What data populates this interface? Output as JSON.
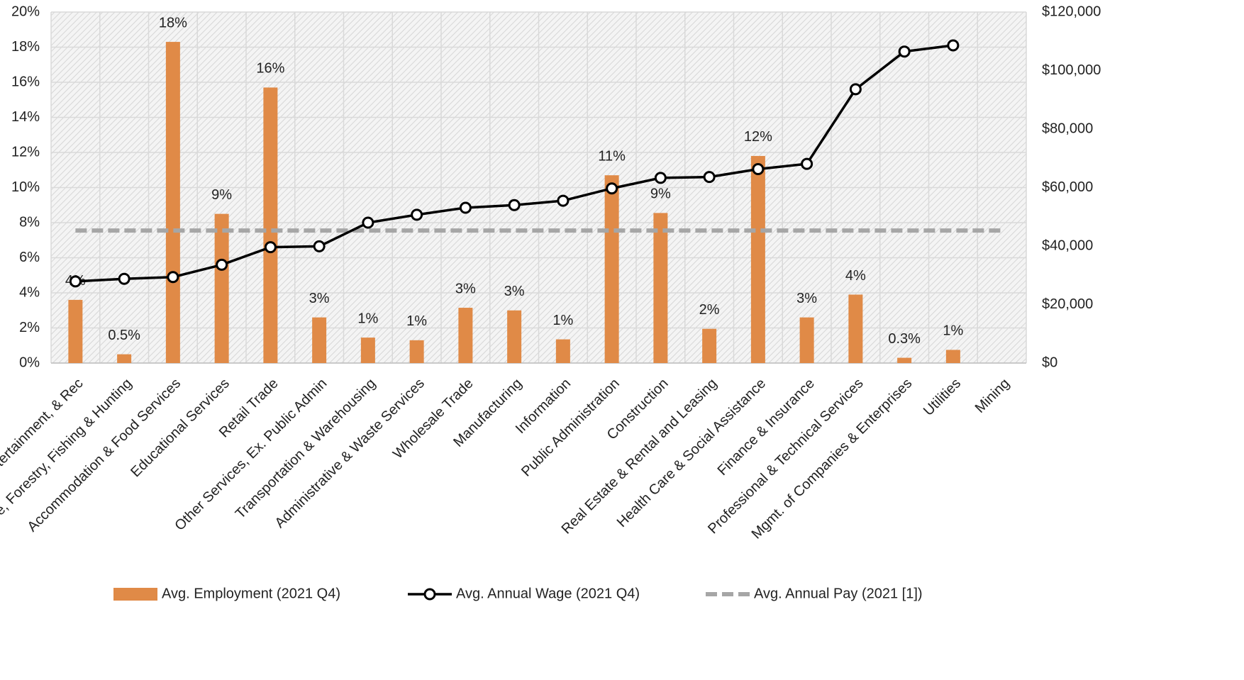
{
  "chart_data": {
    "type": "bar",
    "categories": [
      "Arts, Entertainment, & Rec",
      "Agriculture, Forestry, Fishing & Hunting",
      "Accommodation & Food Services",
      "Educational Services",
      "Retail Trade",
      "Other Services, Ex. Public Admin",
      "Transportation & Warehousing",
      "Administrative & Waste Services",
      "Wholesale Trade",
      "Manufacturing",
      "Information",
      "Public Administration",
      "Construction",
      "Real Estate & Rental and Leasing",
      "Health Care & Social Assistance",
      "Finance & Insurance",
      "Professional & Technical Services",
      "Mgmt. of Companies & Enterprises",
      "Utilities",
      "Mining"
    ],
    "series": [
      {
        "name": "Avg. Employment (2021 Q4)",
        "type": "bar",
        "color": "#e08a47",
        "values": [
          3.6,
          0.5,
          18.3,
          8.5,
          15.7,
          2.6,
          1.45,
          1.3,
          3.15,
          3.0,
          1.35,
          10.7,
          8.55,
          1.95,
          11.8,
          2.6,
          3.9,
          0.3,
          0.75,
          null
        ],
        "value_labels": [
          "4%",
          "0.5%",
          "18%",
          "9%",
          "16%",
          "3%",
          "1%",
          "1%",
          "3%",
          "3%",
          "1%",
          "11%",
          "9%",
          "2%",
          "12%",
          "3%",
          "4%",
          "0.3%",
          "1%",
          null
        ]
      },
      {
        "name": "Avg. Annual Wage (2021 Q4)",
        "type": "line",
        "axis": "y2",
        "color": "#000000",
        "values": [
          27900,
          28800,
          29400,
          33600,
          39600,
          39900,
          48000,
          50700,
          53100,
          54000,
          55500,
          59700,
          63300,
          63600,
          66300,
          68100,
          93600,
          106500,
          108600,
          null
        ]
      },
      {
        "name": "Avg. Annual Pay (2021 [1])",
        "type": "dashed",
        "axis": "y2",
        "color": "#a6a6a6",
        "values": [
          45300,
          45300,
          45300,
          45300,
          45300,
          45300,
          45300,
          45300,
          45300,
          45300,
          45300,
          45300,
          45300,
          45300,
          45300,
          45300,
          45300,
          45300,
          45300,
          45300
        ]
      }
    ],
    "ylim": [
      0,
      20
    ],
    "yticks": [
      {
        "value": 0,
        "label": "0%"
      },
      {
        "value": 2,
        "label": "2%"
      },
      {
        "value": 4,
        "label": "4%"
      },
      {
        "value": 6,
        "label": "6%"
      },
      {
        "value": 8,
        "label": "8%"
      },
      {
        "value": 10,
        "label": "10%"
      },
      {
        "value": 12,
        "label": "12%"
      },
      {
        "value": 14,
        "label": "14%"
      },
      {
        "value": 16,
        "label": "16%"
      },
      {
        "value": 18,
        "label": "18%"
      },
      {
        "value": 20,
        "label": "20%"
      }
    ],
    "y2lim": [
      0,
      120000
    ],
    "y2ticks": [
      {
        "value": 0,
        "label": "$0"
      },
      {
        "value": 20000,
        "label": "$20,000"
      },
      {
        "value": 40000,
        "label": "$40,000"
      },
      {
        "value": 60000,
        "label": "$60,000"
      },
      {
        "value": 80000,
        "label": "$80,000"
      },
      {
        "value": 100000,
        "label": "$100,000"
      },
      {
        "value": 120000,
        "label": "$120,000"
      }
    ],
    "grid": true,
    "legend": "bottom"
  }
}
